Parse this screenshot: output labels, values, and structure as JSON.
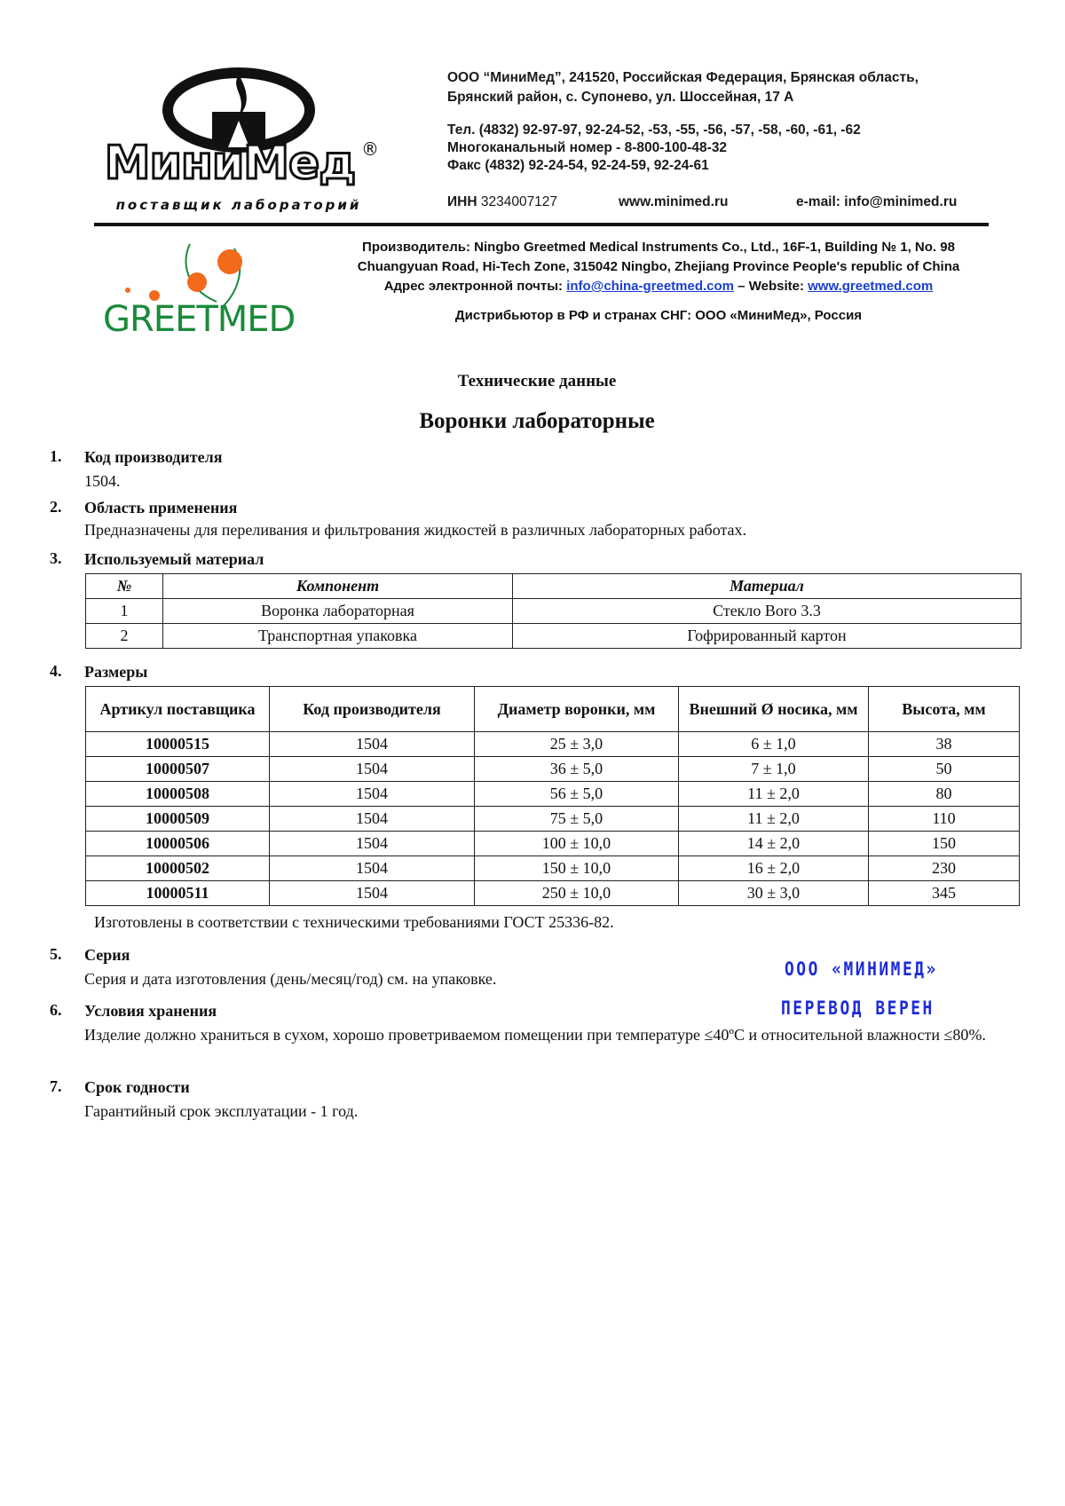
{
  "header": {
    "address_line1": "ООО “МиниМед”, 241520, Российская Федерация, Брянская область,",
    "address_line2": "Брянский район, с. Супонево, ул. Шоссейная, 17 А",
    "phone": "Тел. (4832) 92-97-97, 92-24-52, -53, -55, -56, -57, -58, -60, -61, -62",
    "multichannel": "Многоканальный номер - 8-800-100-48-32",
    "fax": "Факс (4832) 92-24-54, 92-24-59, 92-24-61",
    "inn_label": "ИНН",
    "inn_value": "3234007127",
    "website": "www.minimed.ru",
    "email": "e-mail: info@minimed.ru",
    "logo_text": "МиниМед",
    "logo_tagline": "поставщик лабораторий",
    "registered_mark": "®"
  },
  "manufacturer": {
    "line1": "Производитель: Ningbo Greetmed Medical Instruments Co., Ltd., 16F-1, Building № 1, No. 98",
    "line2": "Chuangyuan Road, Hi-Tech Zone, 315042 Ningbo, Zhejiang Province People's republic of China",
    "email_label": "Адрес электронной почты:",
    "email": "info@china-greetmed.com",
    "website_label": "– Website:",
    "website": "www.greetmed.com",
    "distributor": "Дистрибьютор в РФ и странах СНГ: ООО «МиниМед», Россия",
    "logo_text": "GREETMED"
  },
  "doc": {
    "subtitle": "Технические данные",
    "title": "Воронки лабораторные"
  },
  "sections": [
    {
      "num": "1.",
      "title": "Код производителя",
      "text": "1504."
    },
    {
      "num": "2.",
      "title": "Область применения",
      "text": "Предназначены для переливания и фильтрования жидкостей в различных лабораторных работах."
    },
    {
      "num": "3.",
      "title": "Используемый материал"
    },
    {
      "num": "4.",
      "title": "Размеры",
      "note": "Изготовлены в соответствии с техническими требованиями ГОСТ 25336-82."
    },
    {
      "num": "5.",
      "title": "Серия",
      "text": "Серия и дата изготовления (день/месяц/год) см. на упаковке."
    },
    {
      "num": "6.",
      "title": "Условия хранения",
      "text": "Изделие должно храниться в сухом, хорошо проветриваемом помещении при температуре ≤40ºC и относительной влажности ≤80%."
    },
    {
      "num": "7.",
      "title": "Срок годности",
      "text": "Гарантийный срок эксплуатации - 1 год."
    }
  ],
  "materials_table": {
    "headers": [
      "№",
      "Компонент",
      "Материал"
    ],
    "rows": [
      [
        "1",
        "Воронка лабораторная",
        "Стекло Boro 3.3"
      ],
      [
        "2",
        "Транспортная упаковка",
        "Гофрированный картон"
      ]
    ]
  },
  "sizes_table": {
    "headers": [
      "Артикул поставщика",
      "Код производителя",
      "Диаметр воронки, мм",
      "Внешний Ø носика, мм",
      "Высота, мм"
    ],
    "rows": [
      [
        "10000515",
        "1504",
        "25 ± 3,0",
        "6 ± 1,0",
        "38"
      ],
      [
        "10000507",
        "1504",
        "36 ± 5,0",
        "7 ± 1,0",
        "50"
      ],
      [
        "10000508",
        "1504",
        "56 ± 5,0",
        "11 ± 2,0",
        "80"
      ],
      [
        "10000509",
        "1504",
        "75 ± 5,0",
        "11 ± 2,0",
        "110"
      ],
      [
        "10000506",
        "1504",
        "100 ± 10,0",
        "14 ± 2,0",
        "150"
      ],
      [
        "10000502",
        "1504",
        "150 ± 10,0",
        "16 ± 2,0",
        "230"
      ],
      [
        "10000511",
        "1504",
        "250 ± 10,0",
        "30 ± 3,0",
        "345"
      ]
    ]
  },
  "stamp": {
    "line1": "ООО «МИНИМЕД»",
    "line2": "ПЕРЕВОД ВЕРЕН",
    "color": "#1d2bd8"
  }
}
